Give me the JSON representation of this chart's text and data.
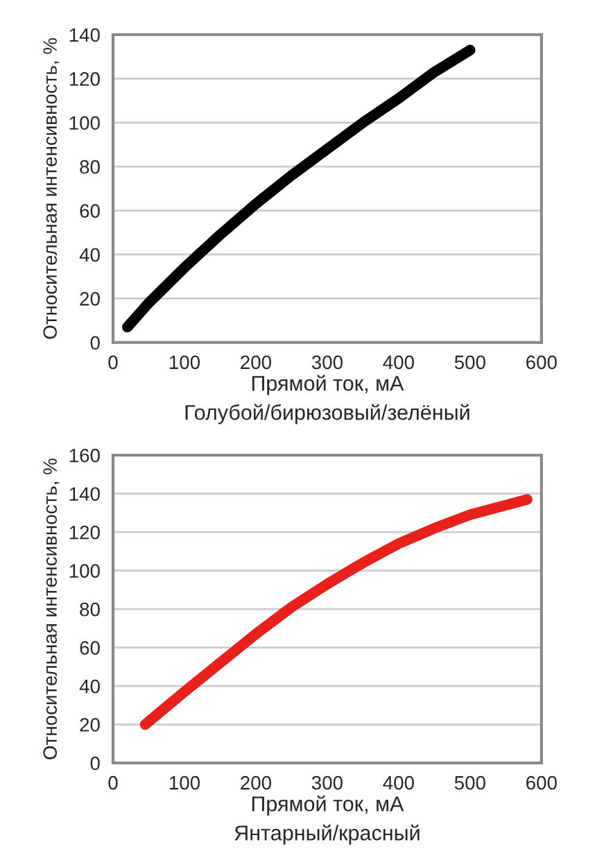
{
  "chart_data": [
    {
      "type": "line",
      "xlabel": "Прямой ток, мА",
      "ylabel": "Относительная интенсивность, %",
      "annotations": [
        "Голубой/бирюзовый/зелёный"
      ],
      "x": [
        20,
        50,
        100,
        150,
        200,
        250,
        300,
        350,
        400,
        450,
        500
      ],
      "series": [
        {
          "color": "#000000",
          "values": [
            7,
            18,
            34,
            49,
            63,
            76,
            88,
            100,
            111,
            123,
            133
          ]
        }
      ],
      "xlim": [
        0,
        600
      ],
      "xticks": [
        0,
        100,
        200,
        300,
        400,
        500,
        600
      ],
      "ylim": [
        0,
        140
      ],
      "yticks": [
        0,
        20,
        40,
        60,
        80,
        100,
        120,
        140
      ],
      "grid": "y"
    },
    {
      "type": "line",
      "xlabel": "Прямой ток, мА",
      "ylabel": "Относительная интенсивность, %",
      "annotations": [
        "Янтарный/красный"
      ],
      "x": [
        45,
        100,
        150,
        200,
        250,
        300,
        350,
        400,
        450,
        500,
        550,
        580
      ],
      "series": [
        {
          "color": "#e8211d",
          "values": [
            20,
            37,
            52,
            67,
            81,
            93,
            104,
            114,
            122,
            129,
            134,
            137
          ]
        }
      ],
      "xlim": [
        0,
        600
      ],
      "xticks": [
        0,
        100,
        200,
        300,
        400,
        500,
        600
      ],
      "ylim": [
        0,
        160
      ],
      "yticks": [
        0,
        20,
        40,
        60,
        80,
        100,
        120,
        140,
        160
      ],
      "grid": "y"
    }
  ]
}
